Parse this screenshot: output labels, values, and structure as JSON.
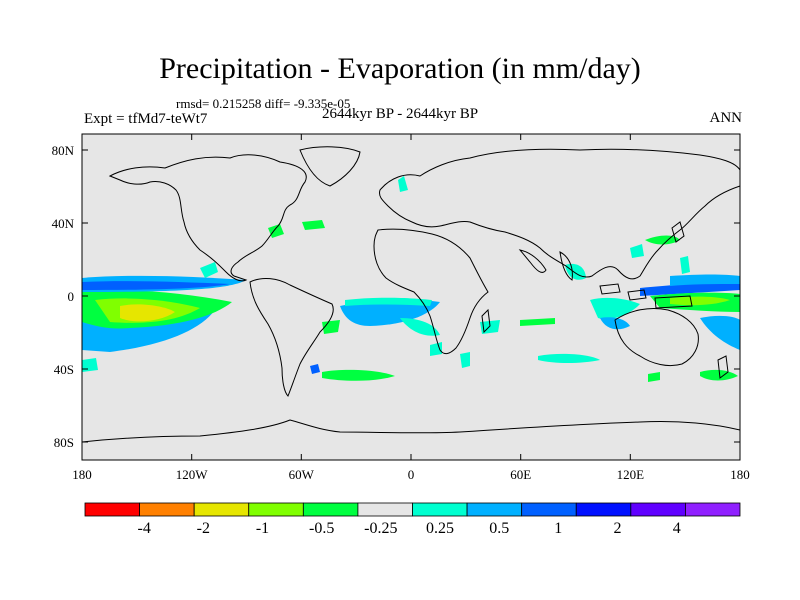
{
  "title": "Precipitation - Evaporation (in mm/day)",
  "stats": "rmsd= 0.215258 diff= -9.335e-05",
  "period": "2644kyr BP - 2644kyr BP",
  "expt": "Expt = tfMd7-teWt7",
  "season": "ANN",
  "lat_ticks": [
    "80N",
    "40N",
    "0",
    "40S",
    "80S"
  ],
  "lon_ticks": [
    "180",
    "120W",
    "60W",
    "0",
    "60E",
    "120E",
    "180"
  ],
  "colorbar": {
    "colors": [
      "#ff0000",
      "#ff8000",
      "#e6e600",
      "#80ff00",
      "#00ff40",
      "#e6e6e6",
      "#00ffd0",
      "#00b0ff",
      "#0060ff",
      "#0010ff",
      "#6000ff",
      "#9020ff"
    ],
    "labels": [
      "-4",
      "-2",
      "-1",
      "-0.5",
      "-0.25",
      "0.25",
      "0.5",
      "1",
      "2",
      "4"
    ]
  },
  "colors": {
    "land_ocean_bg": "#e6e6e6",
    "frame": "#000000"
  }
}
